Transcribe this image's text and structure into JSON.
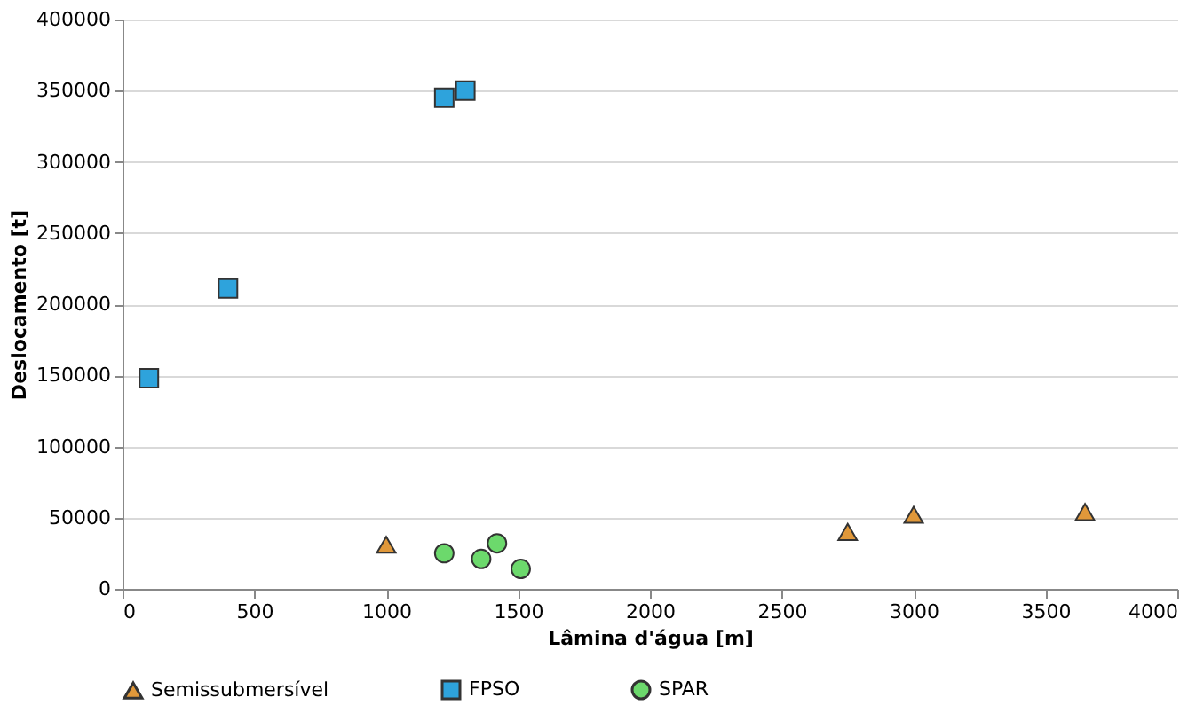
{
  "chart_data": {
    "type": "scatter",
    "xlabel": "Lâmina d'água [m]",
    "ylabel": "Deslocamento [t]",
    "xlim": [
      0,
      4000
    ],
    "xticks": [
      0,
      500,
      1000,
      1500,
      2000,
      2500,
      3000,
      3500,
      4000
    ],
    "ylim": [
      0,
      400000
    ],
    "yticks": [
      0,
      50000,
      100000,
      150000,
      200000,
      250000,
      300000,
      350000,
      400000
    ],
    "grid": "y",
    "legend": "bottom",
    "series": [
      {
        "name": "Semissubmersível",
        "color": "#e0983a",
        "marker": "triangle",
        "x": [
          1000,
          2750,
          3000,
          3650
        ],
        "values": [
          31000,
          40000,
          52000,
          54000
        ]
      },
      {
        "name": "FPSO",
        "color": "#2ea3dc",
        "marker": "square",
        "x": [
          100,
          400,
          1220,
          1300
        ],
        "values": [
          148000,
          211000,
          345000,
          350000
        ]
      },
      {
        "name": "SPAR",
        "color": "#6cd96c",
        "marker": "circle",
        "x": [
          1220,
          1360,
          1420,
          1510
        ],
        "values": [
          25000,
          21000,
          32000,
          14000
        ]
      }
    ]
  }
}
